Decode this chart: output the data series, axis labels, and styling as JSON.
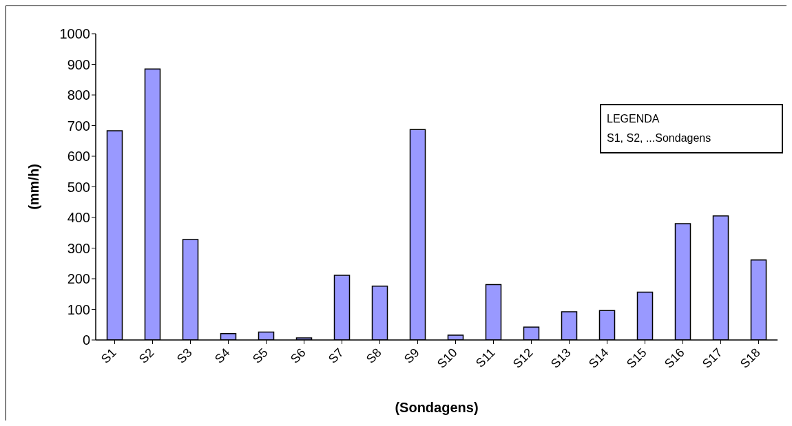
{
  "chart_data": {
    "type": "bar",
    "xlabel": "(Sondagens)",
    "ylabel": "(mm/h)",
    "categories": [
      "S1",
      "S2",
      "S3",
      "S4",
      "S5",
      "S6",
      "S7",
      "S8",
      "S9",
      "S10",
      "S11",
      "S12",
      "S13",
      "S14",
      "S15",
      "S16",
      "S17",
      "S18"
    ],
    "values": [
      683,
      885,
      328,
      21,
      26,
      7,
      211,
      176,
      687,
      16,
      181,
      42,
      92,
      96,
      156,
      380,
      405,
      261
    ],
    "color": "#9999ff",
    "ylim": [
      0,
      1000
    ],
    "yticks": [
      0,
      100,
      200,
      300,
      400,
      500,
      600,
      700,
      800,
      900,
      1000
    ],
    "grid": false,
    "annotations": [
      "LEGENDA",
      "S1, S2, ...Sondagens"
    ]
  }
}
